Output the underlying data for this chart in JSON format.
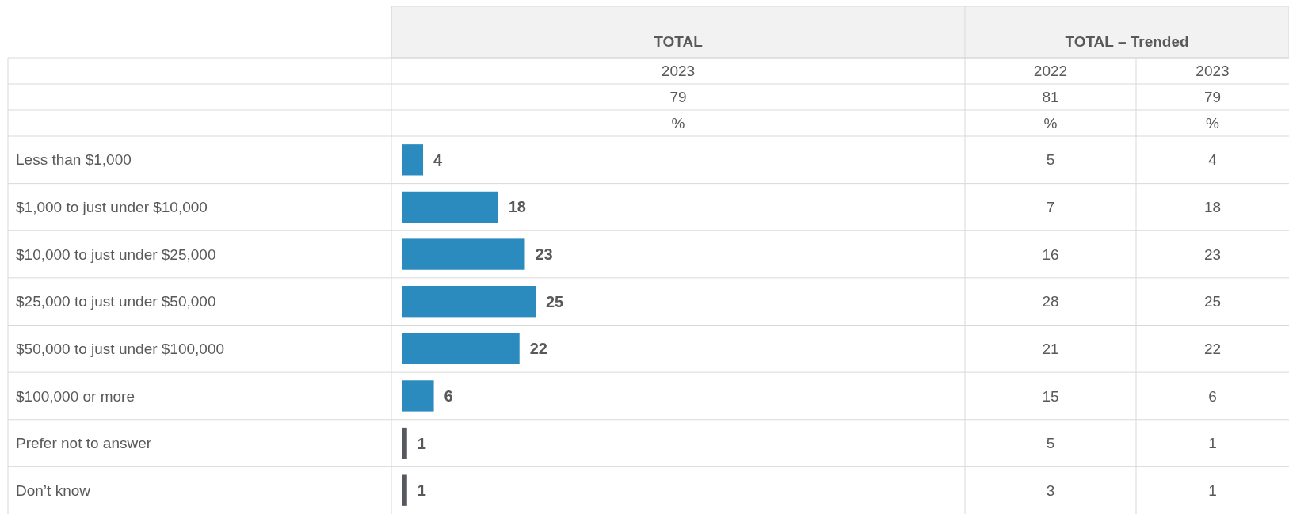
{
  "chart_data": {
    "type": "bar",
    "orientation": "horizontal",
    "data_labels": true,
    "categories": [
      "Less than $1,000",
      "$1,000 to just under $10,000",
      "$10,000 to just under $25,000",
      "$25,000 to just under $50,000",
      "$50,000 to just under $100,000",
      "$100,000 or more",
      "Prefer not to answer",
      "Don’t know"
    ],
    "values": [
      4,
      18,
      23,
      25,
      22,
      6,
      1,
      1
    ],
    "colors": [
      "#2b8bbf",
      "#2b8bbf",
      "#2b8bbf",
      "#2b8bbf",
      "#2b8bbf",
      "#2b8bbf",
      "#55585e",
      "#55585e"
    ],
    "annotations": [
      "TOTAL",
      "2023",
      "79",
      "%",
      "TOTAL – Trended",
      "2022",
      "81",
      "%",
      "2023",
      "79",
      "%",
      "5",
      "7",
      "16",
      "28",
      "21",
      "15",
      "5",
      "3",
      "4",
      "18",
      "23",
      "25",
      "22",
      "6",
      "1",
      "1"
    ]
  }
}
